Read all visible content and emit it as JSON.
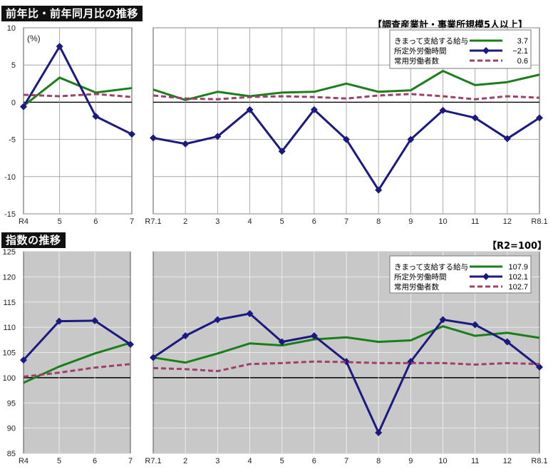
{
  "header_top": {
    "title": "前年比・前年同月比の推移",
    "note": "【調査産業計・事業所規模5人以上】",
    "unit": "(%)"
  },
  "header_bottom": {
    "title": "指数の推移",
    "note": "【R2=100】"
  },
  "colors": {
    "green": "#1a7f1a",
    "navy": "#1a1a80",
    "mauve": "#a0406a",
    "panel_gray": "#c8c8c8"
  },
  "chart_data": [
    {
      "id": "yoy",
      "type": "line",
      "title": "前年比・前年同月比の推移",
      "ylabel": "(%)",
      "ylim": [
        -15,
        10
      ],
      "yticks": [
        10,
        5,
        0,
        -5,
        -10,
        -15
      ],
      "grid": true,
      "legend_position": "top-right",
      "annual": {
        "categories": [
          "R4",
          "5",
          "6",
          "7"
        ],
        "series": [
          {
            "name": "きまって支給する給与",
            "values": [
              -0.5,
              3.3,
              1.3,
              1.9
            ]
          },
          {
            "name": "所定外労働時間",
            "values": [
              -0.6,
              7.5,
              -1.9,
              -4.3
            ]
          },
          {
            "name": "常用労働者数",
            "values": [
              1.0,
              0.8,
              1.1,
              0.7
            ]
          }
        ]
      },
      "monthly": {
        "categories": [
          "R7.1",
          "2",
          "3",
          "4",
          "5",
          "6",
          "7",
          "8",
          "9",
          "10",
          "11",
          "12",
          "R8.1"
        ],
        "series": [
          {
            "name": "きまって支給する給与",
            "values": [
              1.7,
              0.3,
              1.4,
              0.8,
              1.3,
              1.4,
              2.5,
              1.4,
              1.6,
              4.2,
              2.3,
              2.7,
              3.7
            ]
          },
          {
            "name": "所定外労働時間",
            "values": [
              -4.8,
              -5.6,
              -4.6,
              -1.0,
              -6.6,
              -1.0,
              -5.0,
              -11.8,
              -5.0,
              -1.1,
              -2.1,
              -4.9,
              -2.1
            ]
          },
          {
            "name": "常用労働者数",
            "values": [
              0.9,
              0.5,
              0.4,
              0.7,
              0.8,
              0.7,
              0.5,
              0.9,
              1.1,
              0.8,
              0.4,
              0.8,
              0.6
            ]
          }
        ]
      },
      "legend": [
        {
          "name": "きまって支給する給与",
          "value": "3.7"
        },
        {
          "name": "所定外労働時間",
          "value": "−2.1"
        },
        {
          "name": "常用労働者数",
          "value": "0.6"
        }
      ]
    },
    {
      "id": "index",
      "type": "line",
      "title": "指数の推移",
      "ylim": [
        85,
        125
      ],
      "yticks": [
        125,
        120,
        115,
        110,
        105,
        100,
        95,
        90,
        85
      ],
      "grid": true,
      "legend_position": "top-right",
      "annual": {
        "categories": [
          "R4",
          "5",
          "6",
          "7"
        ],
        "series": [
          {
            "name": "きまって支給する給与",
            "values": [
              99.0,
              102.2,
              104.8,
              106.9
            ]
          },
          {
            "name": "所定外労働時間",
            "values": [
              103.5,
              111.2,
              111.3,
              106.6
            ]
          },
          {
            "name": "常用労働者数",
            "values": [
              100.2,
              101.0,
              102.0,
              102.7
            ]
          }
        ]
      },
      "monthly": {
        "categories": [
          "R7.1",
          "2",
          "3",
          "4",
          "5",
          "6",
          "7",
          "8",
          "9",
          "10",
          "11",
          "12",
          "R8.1"
        ],
        "series": [
          {
            "name": "きまって支給する給与",
            "values": [
              104.0,
              103.0,
              104.8,
              106.8,
              106.4,
              107.6,
              108.0,
              107.1,
              107.4,
              110.2,
              108.3,
              108.9,
              107.9
            ]
          },
          {
            "name": "所定外労働時間",
            "values": [
              104.0,
              108.3,
              111.5,
              112.7,
              107.1,
              108.3,
              103.2,
              89.1,
              103.2,
              111.5,
              110.5,
              107.1,
              102.1
            ]
          },
          {
            "name": "常用労働者数",
            "values": [
              101.9,
              101.7,
              101.3,
              102.7,
              102.9,
              103.2,
              103.1,
              102.9,
              102.9,
              102.9,
              102.6,
              102.9,
              102.7
            ]
          }
        ]
      },
      "legend": [
        {
          "name": "きまって支給する給与",
          "value": "107.9"
        },
        {
          "name": "所定外労働時間",
          "value": "102.1"
        },
        {
          "name": "常用労働者数",
          "value": "102.7"
        }
      ]
    }
  ]
}
